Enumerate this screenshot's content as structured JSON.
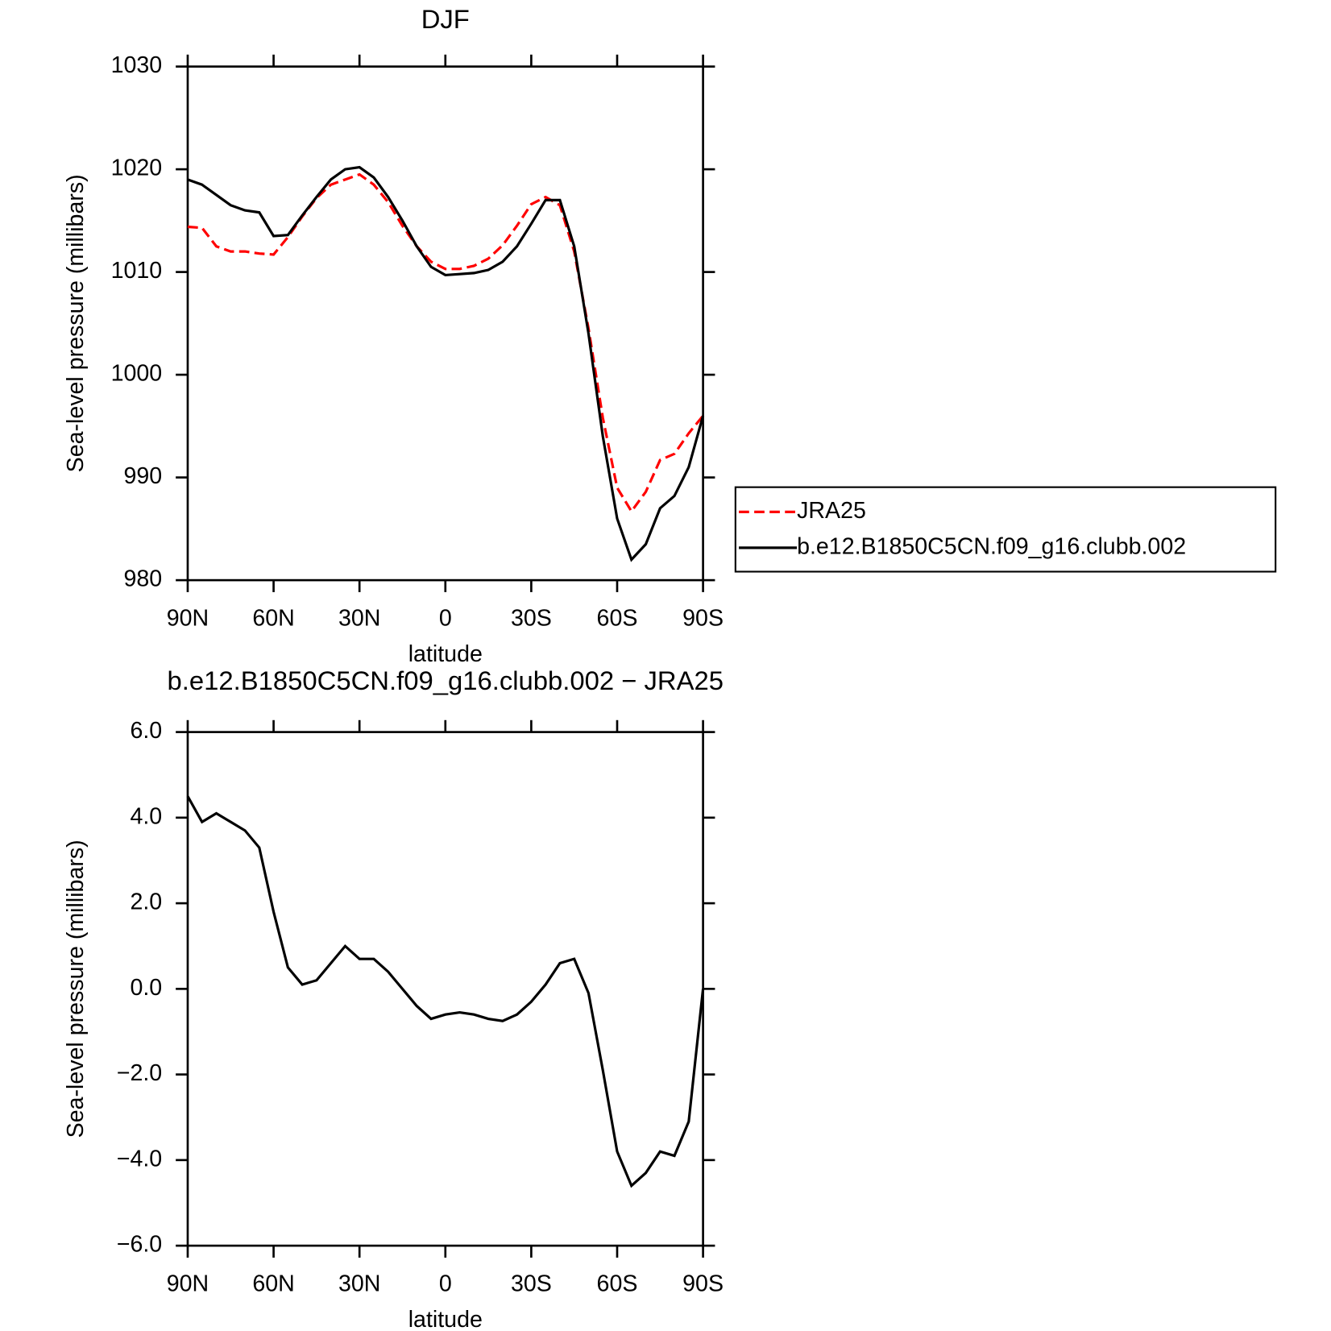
{
  "chart_data": [
    {
      "type": "line",
      "title": "DJF",
      "xlabel": "latitude",
      "ylabel": "Sea-level pressure (millibars)",
      "x": [
        90,
        85,
        80,
        75,
        70,
        65,
        60,
        55,
        50,
        45,
        40,
        35,
        30,
        25,
        20,
        15,
        10,
        5,
        0,
        -5,
        -10,
        -15,
        -20,
        -25,
        -30,
        -35,
        -40,
        -45,
        -50,
        -55,
        -60,
        -65,
        -70,
        -75,
        -80,
        -85,
        -90
      ],
      "series": [
        {
          "name": "JRA25",
          "color": "#ff0000",
          "dash": true,
          "values": [
            1014.4,
            1014.3,
            1012.5,
            1012,
            1012,
            1011.8,
            1011.7,
            1013.4,
            1015.4,
            1017.2,
            1018.5,
            1019,
            1019.5,
            1018.5,
            1016.8,
            1014.5,
            1012.5,
            1011,
            1010.3,
            1010.3,
            1010.6,
            1011.3,
            1012.6,
            1014.5,
            1016.6,
            1017.3,
            1016.5,
            1012,
            1004.5,
            995.8,
            989,
            986.7,
            988.6,
            991.7,
            992.3,
            994.3,
            996
          ]
        },
        {
          "name": "b.e12.B1850C5CN.f09_g16.clubb.002",
          "color": "#000000",
          "dash": false,
          "values": [
            1019,
            1018.5,
            1017.5,
            1016.5,
            1016,
            1015.8,
            1013.5,
            1013.6,
            1015.5,
            1017.3,
            1019,
            1020,
            1020.2,
            1019.2,
            1017.3,
            1015,
            1012.5,
            1010.5,
            1009.7,
            1009.8,
            1009.9,
            1010.2,
            1011,
            1012.5,
            1014.7,
            1017,
            1017,
            1012.5,
            1004,
            994,
            986,
            982,
            983.5,
            987,
            988.2,
            991,
            996
          ]
        }
      ],
      "xlim": [
        90,
        -90
      ],
      "xticks": [
        {
          "value": 90,
          "label": "90N"
        },
        {
          "value": 60,
          "label": "60N"
        },
        {
          "value": 30,
          "label": "30N"
        },
        0,
        {
          "value": -30,
          "label": "30S"
        },
        {
          "value": -60,
          "label": "60S"
        },
        {
          "value": -90,
          "label": "90S"
        }
      ],
      "ylim": [
        980,
        1030
      ],
      "yticks": [
        980,
        990,
        1000,
        1010,
        1020,
        1030
      ],
      "legend": "outside-right"
    },
    {
      "type": "line",
      "title": "b.e12.B1850C5CN.f09_g16.clubb.002 − JRA25",
      "xlabel": "latitude",
      "ylabel": "Sea-level pressure (millibars)",
      "x": [
        90,
        85,
        80,
        75,
        70,
        65,
        60,
        55,
        50,
        45,
        40,
        35,
        30,
        25,
        20,
        15,
        10,
        5,
        0,
        -5,
        -10,
        -15,
        -20,
        -25,
        -30,
        -35,
        -40,
        -45,
        -50,
        -55,
        -60,
        -65,
        -70,
        -75,
        -80,
        -85,
        -90
      ],
      "series": [
        {
          "color": "#000000",
          "dash": false,
          "values": [
            4.5,
            3.9,
            4.1,
            3.9,
            3.7,
            3.3,
            1.8,
            0.5,
            0.1,
            0.2,
            0.6,
            1.0,
            0.7,
            0.7,
            0.4,
            0,
            -0.4,
            -0.7,
            -0.6,
            -0.55,
            -0.6,
            -0.7,
            -0.75,
            -0.6,
            -0.3,
            0.1,
            0.6,
            0.7,
            -0.1,
            -1.9,
            -3.8,
            -4.6,
            -4.3,
            -3.8,
            -3.9,
            -3.1,
            0
          ]
        }
      ],
      "xlim": [
        90,
        -90
      ],
      "xticks": [
        {
          "value": 90,
          "label": "90N"
        },
        {
          "value": 60,
          "label": "60N"
        },
        {
          "value": 30,
          "label": "30N"
        },
        0,
        {
          "value": -30,
          "label": "30S"
        },
        {
          "value": -60,
          "label": "60S"
        },
        {
          "value": -90,
          "label": "90S"
        }
      ],
      "ylim": [
        -6,
        6
      ],
      "yticks": [
        {
          "value": -6,
          "label": "−6.0"
        },
        {
          "value": -4,
          "label": "−4.0"
        },
        {
          "value": -2,
          "label": "−2.0"
        },
        {
          "value": 0,
          "label": "0.0"
        },
        {
          "value": 2,
          "label": "2.0"
        },
        {
          "value": 4,
          "label": "4.0"
        },
        {
          "value": 6,
          "label": "6.0"
        }
      ]
    }
  ]
}
